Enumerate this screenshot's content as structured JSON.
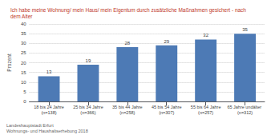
{
  "chart_data": {
    "type": "bar",
    "title": "Ich habe meine Wohnung/ mein Haus/ mein Eigentum durch zusätzliche Maßnahmen gesichert - nach\ndem Alter",
    "title_color": "#c0392b",
    "categories": [
      "18 bis 24 Jahre\n(n=138)",
      "25 bis 34 Jahre\n(n=366)",
      "35 bis 44 Jahre\n(n=258)",
      "45 bis 54 Jahre\n(n=307)",
      "55 bis 64 Jahre\n(n=257)",
      "65 Jahre undälter (n=312)"
    ],
    "values": [
      13,
      19,
      28,
      29,
      32,
      35
    ],
    "color": "#4d7ab5",
    "ylabel": "Prozent",
    "ylim": [
      0,
      40
    ],
    "yticks": [
      0,
      5,
      10,
      15,
      20,
      25,
      30,
      35,
      40
    ],
    "grid": true,
    "data_labels": true,
    "annotations": [
      "Landeshauptstadt Erfurt",
      "Wohnungs- und Haushaltserhebung 2018"
    ]
  }
}
